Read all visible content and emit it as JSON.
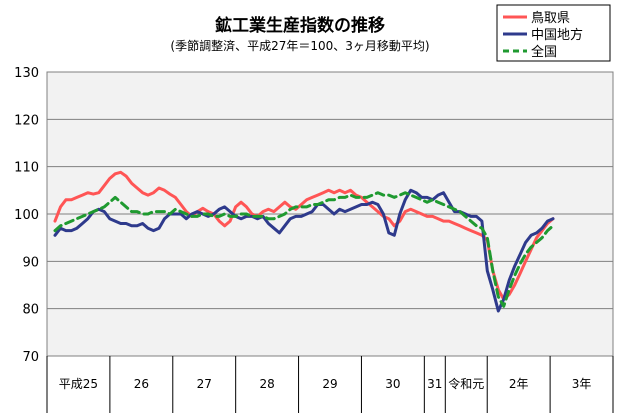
{
  "chart_data": {
    "type": "line",
    "title": "鉱工業生産指数の推移",
    "subtitle": "(季節調整済、平成27年＝100、3ヶ月移動平均)",
    "xlabel": "",
    "ylabel": "",
    "ylim": [
      70,
      130
    ],
    "yticks": [
      "70",
      "80",
      "90",
      "100",
      "110",
      "120",
      "130"
    ],
    "grid": true,
    "legend_position": "top-right",
    "year_groups": [
      {
        "label": "平成25",
        "months": 12
      },
      {
        "label": "26",
        "months": 12
      },
      {
        "label": "27",
        "months": 12
      },
      {
        "label": "28",
        "months": 12
      },
      {
        "label": "29",
        "months": 12
      },
      {
        "label": "30",
        "months": 12
      },
      {
        "label": "31",
        "months": 4
      },
      {
        "label": "令和元",
        "months": 8
      },
      {
        "label": "2年",
        "months": 12
      },
      {
        "label": "3年",
        "months": 12
      }
    ],
    "series": [
      {
        "name": "鳥取県",
        "color": "#ff5555",
        "dash": false,
        "values": [
          98.5,
          101.5,
          103,
          103,
          103.5,
          104,
          104.5,
          104.2,
          104.5,
          106,
          107.5,
          108.5,
          108.8,
          108,
          106.5,
          105.5,
          104.5,
          104,
          104.5,
          105.5,
          105,
          104.2,
          103.5,
          102,
          100.5,
          99.5,
          100.5,
          101.2,
          100.5,
          100,
          98.5,
          97.5,
          98.5,
          101.5,
          102.5,
          101.5,
          100,
          99.5,
          100.5,
          101,
          100.5,
          101.5,
          102.5,
          101.5,
          101,
          102,
          103,
          103.5,
          104,
          104.5,
          105,
          104.5,
          105,
          104.5,
          105,
          104,
          103.5,
          102.5,
          101.5,
          100.5,
          99.5,
          99,
          97.5,
          98.5,
          100.5,
          101,
          100.5,
          100,
          99.5,
          99.5,
          99,
          98.5,
          98.5,
          98,
          97.5,
          97,
          96.5,
          96,
          95.5,
          94.5,
          88,
          84,
          82,
          83,
          85,
          87.5,
          90,
          92.5,
          95,
          96.5,
          98,
          99
        ]
      },
      {
        "name": "中国地方",
        "color": "#2e3a8c",
        "dash": false,
        "values": [
          95.5,
          97,
          96.5,
          96.5,
          97,
          98,
          99,
          100.5,
          101,
          100.5,
          99,
          98.5,
          98,
          98,
          97.5,
          97.5,
          98,
          97,
          96.5,
          97,
          99,
          100,
          100,
          100,
          99,
          100,
          100.5,
          100,
          99.5,
          100,
          101,
          101.5,
          100.5,
          99.5,
          99,
          99.5,
          99.5,
          99,
          99.5,
          98,
          97,
          96,
          97.5,
          99,
          99.5,
          99.5,
          100,
          100.5,
          102,
          102,
          101,
          100,
          101,
          100.5,
          101,
          101.5,
          102,
          102,
          102.5,
          102,
          100,
          96,
          95.5,
          100,
          103,
          105,
          104.5,
          103.5,
          103.5,
          103,
          104,
          104.5,
          102.5,
          100.5,
          100.5,
          100,
          99.5,
          99.5,
          98.5,
          88,
          84,
          79.5,
          82,
          86,
          89,
          91.5,
          94,
          95.5,
          96,
          97,
          98.5,
          99
        ]
      },
      {
        "name": "全国",
        "color": "#1f9a30",
        "dash": true,
        "values": [
          96.5,
          97.5,
          98,
          98.5,
          99,
          99.5,
          100,
          100.5,
          101,
          101.5,
          102.5,
          103.5,
          102.5,
          101.5,
          100.5,
          100.5,
          100,
          100,
          100.5,
          100.5,
          100.5,
          100,
          101,
          100.5,
          100,
          99.5,
          99.5,
          100,
          100,
          99.5,
          99.5,
          100,
          99.5,
          99.5,
          100,
          100,
          99.5,
          99.5,
          99.5,
          99,
          99,
          99.5,
          100,
          101,
          101.5,
          101.5,
          101.5,
          102,
          102,
          102.5,
          103,
          103,
          103.5,
          103.5,
          104,
          103.5,
          103.5,
          103.5,
          104,
          104.5,
          104,
          104,
          103.5,
          104,
          104.5,
          104,
          103.5,
          103,
          102.5,
          103,
          102.5,
          102,
          101.5,
          101,
          100.5,
          99.5,
          98.5,
          97.5,
          97,
          95,
          88,
          82.5,
          80.5,
          84,
          87,
          89.5,
          91.5,
          93,
          94,
          95,
          96.5,
          97.5
        ]
      }
    ]
  }
}
